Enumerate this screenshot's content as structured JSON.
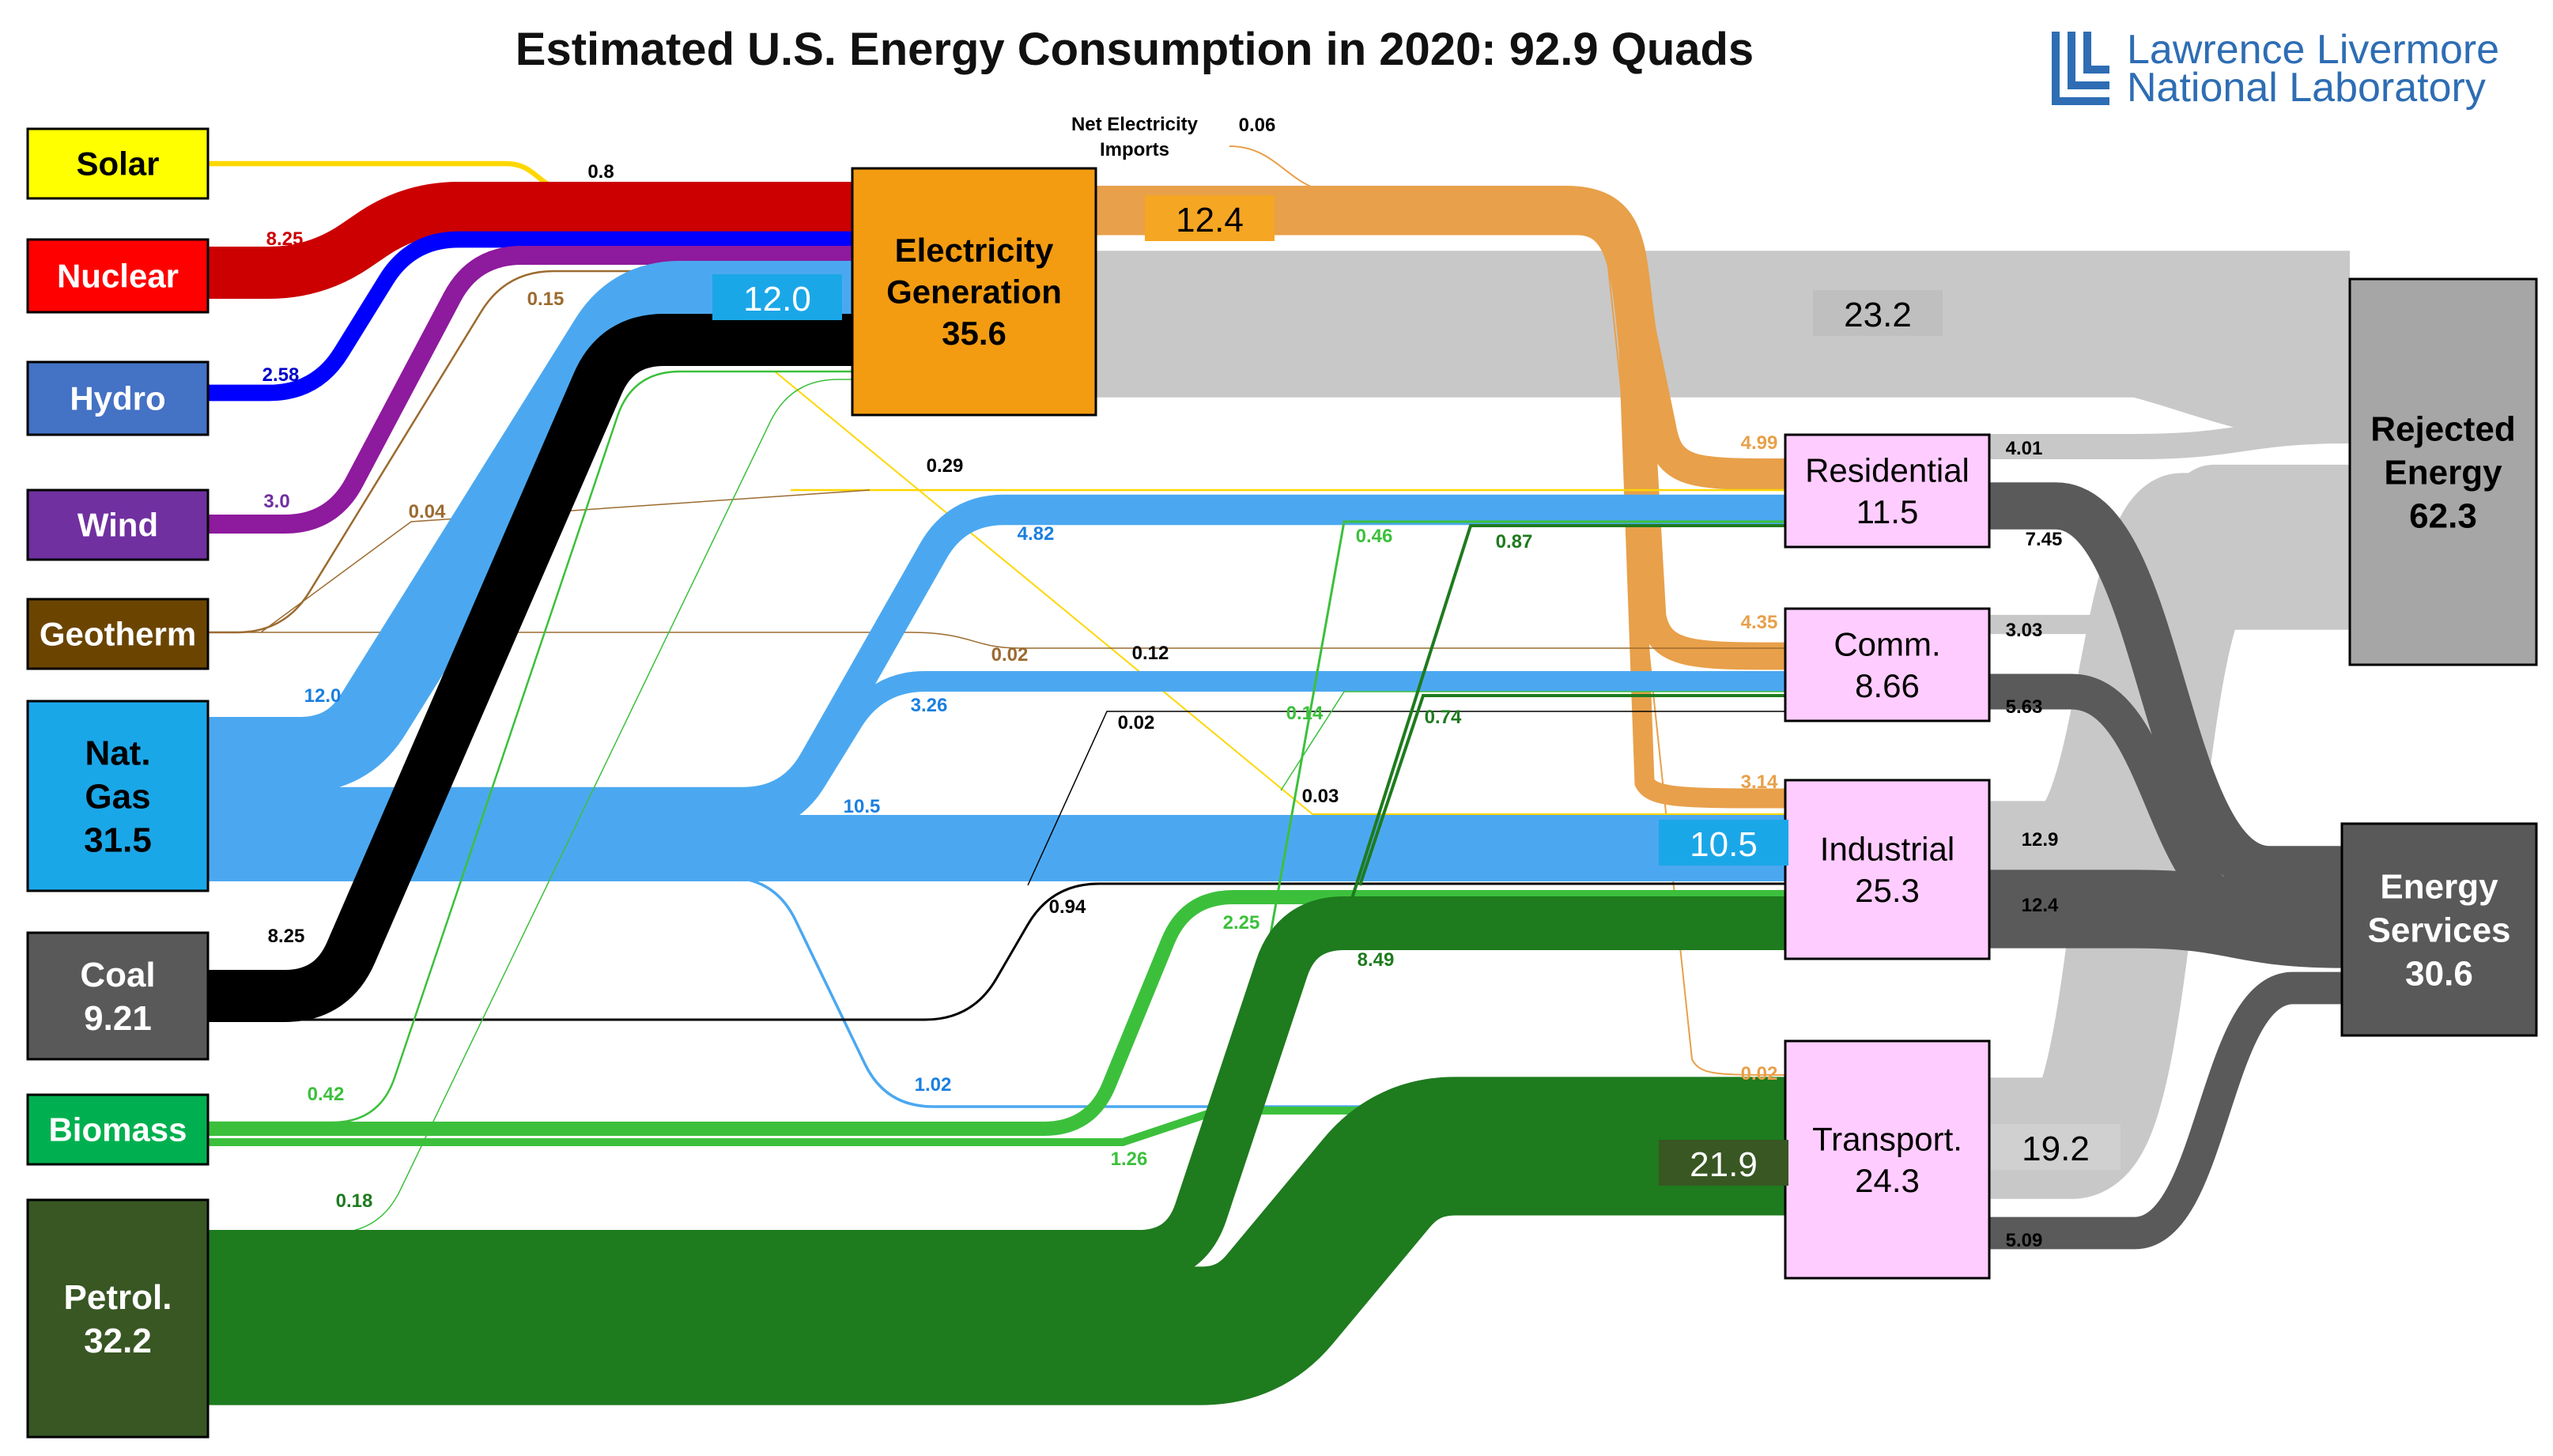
{
  "title": "Estimated U.S. Energy Consumption in 2020: 92.9 Quads",
  "logo": {
    "line1": "Lawrence Livermore",
    "line2": "National Laboratory"
  },
  "sources": [
    {
      "key": "solar",
      "name": "Solar",
      "value": null,
      "fill": "#FFFF00",
      "text": "#000000"
    },
    {
      "key": "nuclear",
      "name": "Nuclear",
      "value": null,
      "fill": "#FF0000",
      "text": "#ffffff"
    },
    {
      "key": "hydro",
      "name": "Hydro",
      "value": null,
      "fill": "#4472C4",
      "text": "#ffffff"
    },
    {
      "key": "wind",
      "name": "Wind",
      "value": null,
      "fill": "#7030A0",
      "text": "#ffffff"
    },
    {
      "key": "geothermal",
      "name": "Geotherm",
      "value": null,
      "fill": "#6B4500",
      "text": "#ffffff"
    },
    {
      "key": "natgas",
      "name": "Nat.\nGas",
      "value": "31.5",
      "fill": "#1AA7E8",
      "text": "#000000"
    },
    {
      "key": "coal",
      "name": "Coal",
      "value": "9.21",
      "fill": "#595959",
      "text": "#ffffff"
    },
    {
      "key": "biomass",
      "name": "Biomass",
      "value": null,
      "fill": "#00B050",
      "text": "#ffffff"
    },
    {
      "key": "petroleum",
      "name": "Petrol.",
      "value": "32.2",
      "fill": "#385723",
      "text": "#ffffff"
    }
  ],
  "hubs": [
    {
      "key": "electricity",
      "name": "Electricity\nGeneration",
      "value": "35.6",
      "fill": "#F39C12"
    },
    {
      "key": "residential",
      "name": "Residential",
      "value": "11.5",
      "fill": "#FFCCFF"
    },
    {
      "key": "commercial",
      "name": "Comm.",
      "value": "8.66",
      "fill": "#FFCCFF"
    },
    {
      "key": "industrial",
      "name": "Industrial",
      "value": "25.3",
      "fill": "#FFCCFF"
    },
    {
      "key": "transportation",
      "name": "Transport.",
      "value": "24.3",
      "fill": "#FFCCFF"
    }
  ],
  "sinks": [
    {
      "key": "rejected",
      "name": "Rejected\nEnergy",
      "value": "62.3",
      "fill": "#A6A6A6"
    },
    {
      "key": "services",
      "name": "Energy\nServices",
      "value": "30.6",
      "fill": "#595959"
    }
  ],
  "colors": {
    "solar": "#FFD700",
    "nuclear": "#CC0000",
    "hydro": "#0000FF",
    "wind": "#8E1A9E",
    "geothermal": "#9C6B30",
    "natgas": "#4BA8F0",
    "coal": "#000000",
    "biomass": "#3CC03C",
    "petroleum": "#1E7B1E",
    "electricity": "#E8A04A",
    "rejected": "#C8C8C8",
    "services": "#5A5A5A"
  },
  "chart_data": {
    "type": "sankey",
    "title": "Estimated U.S. Energy Consumption in 2020: 92.9 Quads",
    "units": "",
    "flows": [
      {
        "from": "Solar",
        "to": "Electricity Generation",
        "value": 0.8,
        "label": "0.8"
      },
      {
        "from": "Nuclear",
        "to": "Electricity Generation",
        "value": 8.25,
        "label": "8.25"
      },
      {
        "from": "Hydro",
        "to": "Electricity Generation",
        "value": 2.58,
        "label": "2.58"
      },
      {
        "from": "Wind",
        "to": "Electricity Generation",
        "value": 3.0,
        "label": "3.0"
      },
      {
        "from": "Geothermal",
        "to": "Electricity Generation",
        "value": 0.15,
        "label": "0.15"
      },
      {
        "from": "Natural Gas",
        "to": "Electricity Generation",
        "value": 12.0,
        "label": "12.0"
      },
      {
        "from": "Coal",
        "to": "Electricity Generation",
        "value": 8.25,
        "label": "8.25"
      },
      {
        "from": "Biomass",
        "to": "Electricity Generation",
        "value": 0.42,
        "label": "0.42"
      },
      {
        "from": "Petroleum",
        "to": "Electricity Generation",
        "value": 0.18,
        "label": "0.18"
      },
      {
        "from": "Net Electricity Imports",
        "to": "Electricity Generation",
        "value": 0.06,
        "label": "0.06"
      },
      {
        "from": "Solar",
        "to": "Residential",
        "value": 0.29,
        "label": "0.29"
      },
      {
        "from": "Solar",
        "to": "Commercial",
        "value": 0.12,
        "label": "0.12"
      },
      {
        "from": "Solar",
        "to": "Industrial",
        "value": 0.03,
        "label": "0.03"
      },
      {
        "from": "Geothermal",
        "to": "Residential",
        "value": 0.04,
        "label": "0.04"
      },
      {
        "from": "Geothermal",
        "to": "Commercial",
        "value": 0.02,
        "label": "0.02"
      },
      {
        "from": "Natural Gas",
        "to": "Residential",
        "value": 4.82,
        "label": "4.82"
      },
      {
        "from": "Natural Gas",
        "to": "Commercial",
        "value": 3.26,
        "label": "3.26"
      },
      {
        "from": "Natural Gas",
        "to": "Industrial",
        "value": 10.5,
        "label": "10.5"
      },
      {
        "from": "Natural Gas",
        "to": "Transportation",
        "value": 1.02,
        "label": "1.02"
      },
      {
        "from": "Coal",
        "to": "Commercial",
        "value": 0.02,
        "label": "0.02"
      },
      {
        "from": "Coal",
        "to": "Industrial",
        "value": 0.94,
        "label": "0.94"
      },
      {
        "from": "Biomass",
        "to": "Residential",
        "value": 0.46,
        "label": "0.46"
      },
      {
        "from": "Biomass",
        "to": "Commercial",
        "value": 0.14,
        "label": "0.14"
      },
      {
        "from": "Biomass",
        "to": "Industrial",
        "value": 2.25,
        "label": "2.25"
      },
      {
        "from": "Biomass",
        "to": "Transportation",
        "value": 1.26,
        "label": "1.26"
      },
      {
        "from": "Petroleum",
        "to": "Residential",
        "value": 0.87,
        "label": "0.87"
      },
      {
        "from": "Petroleum",
        "to": "Commercial",
        "value": 0.74,
        "label": "0.74"
      },
      {
        "from": "Petroleum",
        "to": "Industrial",
        "value": 8.49,
        "label": "8.49"
      },
      {
        "from": "Petroleum",
        "to": "Transportation",
        "value": 21.9,
        "label": "21.9"
      },
      {
        "from": "Electricity Generation",
        "to": "Residential",
        "value": 4.99,
        "label": "4.99"
      },
      {
        "from": "Electricity Generation",
        "to": "Commercial",
        "value": 4.35,
        "label": "4.35"
      },
      {
        "from": "Electricity Generation",
        "to": "Industrial",
        "value": 3.14,
        "label": "3.14"
      },
      {
        "from": "Electricity Generation",
        "to": "Transportation",
        "value": 0.02,
        "label": "0.02"
      },
      {
        "from": "Electricity Generation",
        "to": "Rejected Energy",
        "value": 23.2,
        "label": "23.2"
      },
      {
        "from": "Residential",
        "to": "Rejected Energy",
        "value": 4.01,
        "label": "4.01"
      },
      {
        "from": "Residential",
        "to": "Energy Services",
        "value": 7.45,
        "label": "7.45"
      },
      {
        "from": "Commercial",
        "to": "Rejected Energy",
        "value": 3.03,
        "label": "3.03"
      },
      {
        "from": "Commercial",
        "to": "Energy Services",
        "value": 5.63,
        "label": "5.63"
      },
      {
        "from": "Industrial",
        "to": "Rejected Energy",
        "value": 12.9,
        "label": "12.9"
      },
      {
        "from": "Industrial",
        "to": "Energy Services",
        "value": 12.4,
        "label": "12.4"
      },
      {
        "from": "Transportation",
        "to": "Rejected Energy",
        "value": 19.2,
        "label": "19.2"
      },
      {
        "from": "Transportation",
        "to": "Energy Services",
        "value": 5.09,
        "label": "5.09"
      }
    ],
    "flow_boxes": {
      "electricity_delivered": "12.4",
      "natgas_to_electricity": "12.0",
      "natgas_to_industrial": "10.5",
      "petroleum_to_transport": "21.9",
      "electricity_rejected": "23.2",
      "transport_rejected": "19.2"
    },
    "annotations": {
      "imports_label": "Net Electricity\nImports"
    }
  }
}
